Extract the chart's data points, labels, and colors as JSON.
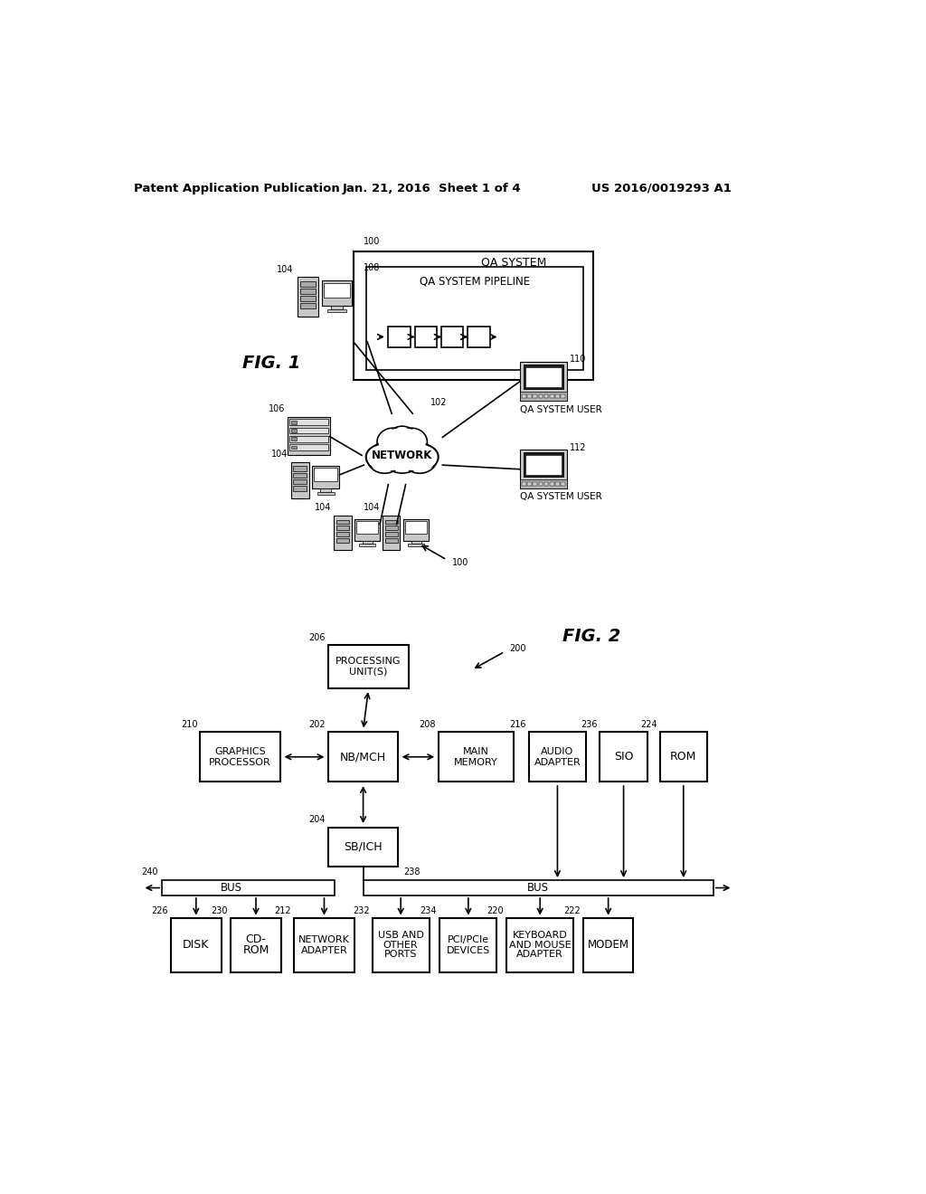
{
  "background_color": "#ffffff",
  "header_left": "Patent Application Publication",
  "header_center": "Jan. 21, 2016  Sheet 1 of 4",
  "header_right": "US 2016/0019293 A1",
  "black": "#000000",
  "gray_light": "#d8d8d8",
  "gray_med": "#b0b0b0",
  "gray_dark": "#808080"
}
